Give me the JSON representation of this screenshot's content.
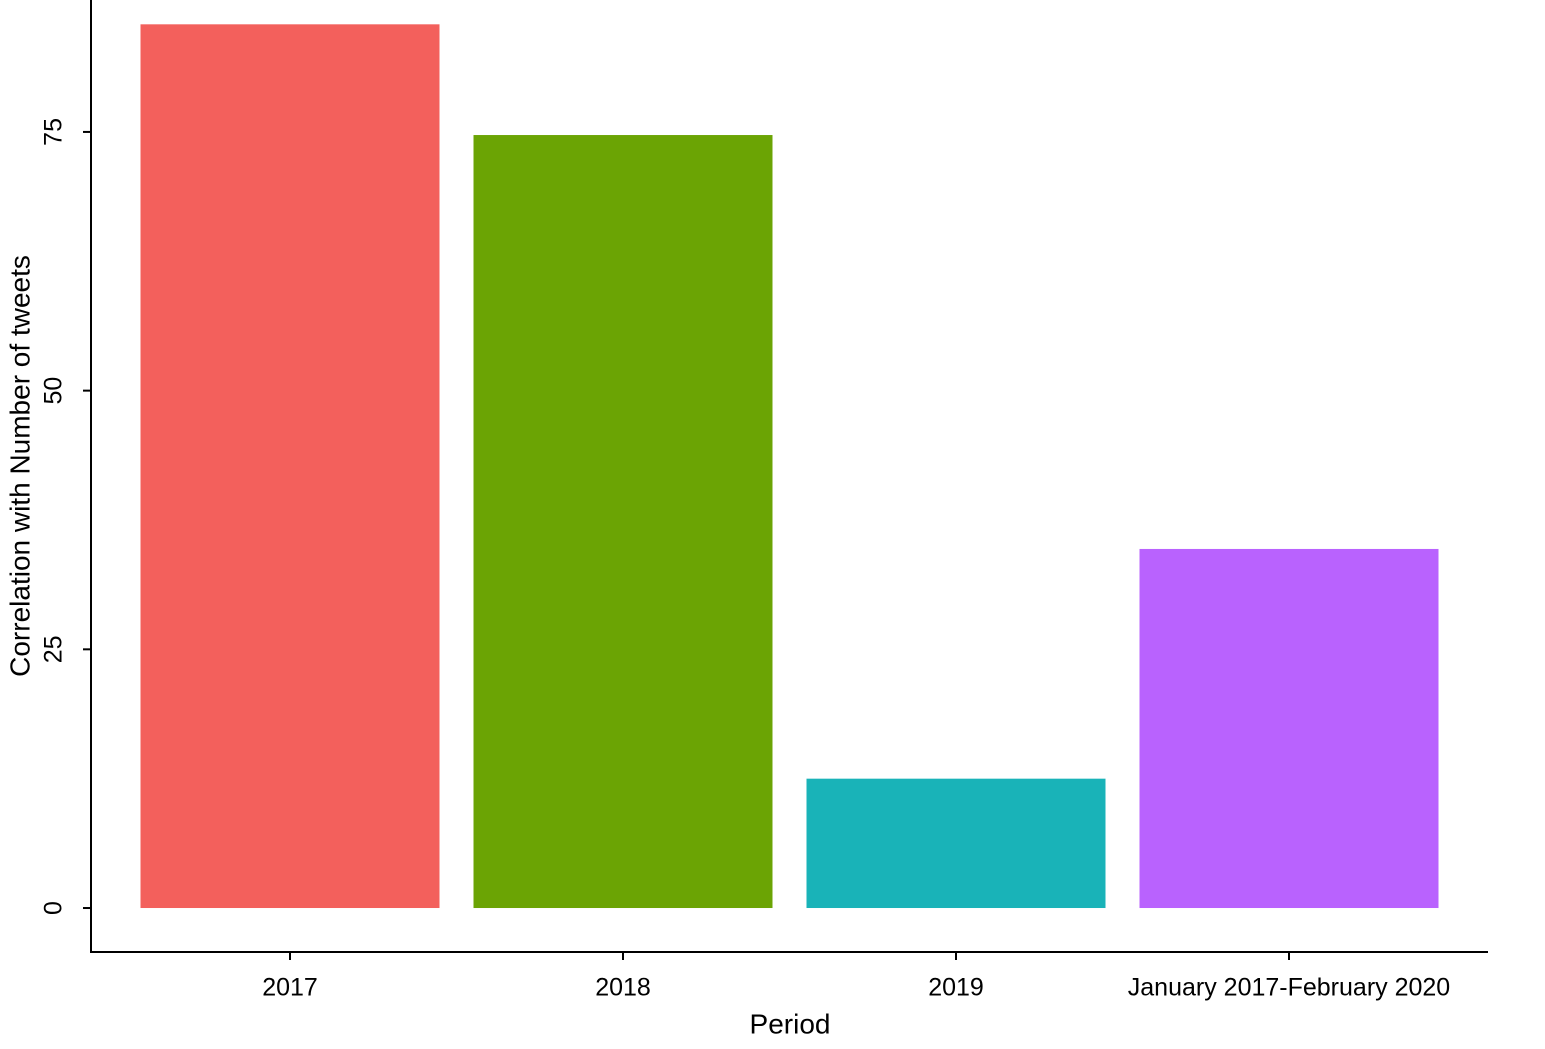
{
  "chart_data": {
    "type": "bar",
    "x_label": "Period",
    "y_label": "Correlation with Number of tweets",
    "categories": [
      "2017",
      "2018",
      "2019",
      "January 2017-February 2020"
    ],
    "values": [
      85.4,
      74.7,
      12.5,
      34.7
    ],
    "colors": [
      "#f3605c",
      "#6ba404",
      "#19b3b8",
      "#b962fe"
    ],
    "ylim": [
      -4.25,
      87.75
    ],
    "yticks": [
      0,
      25,
      50,
      75
    ]
  }
}
